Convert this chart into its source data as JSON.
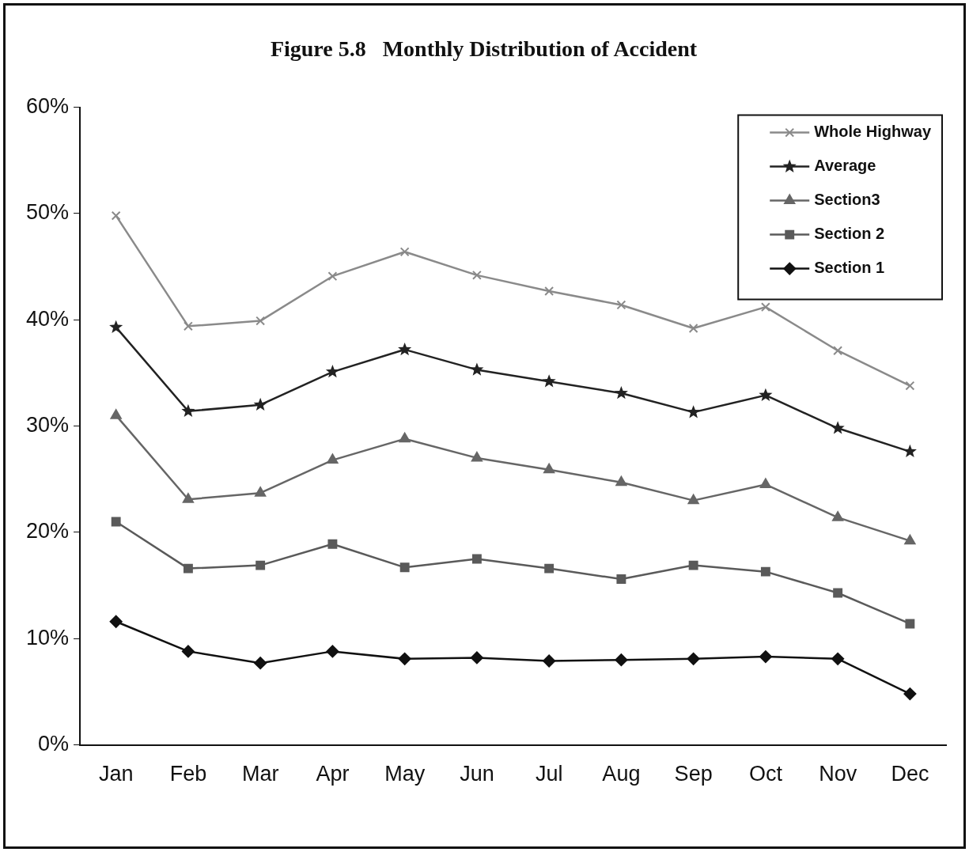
{
  "chart_data": {
    "type": "line",
    "title": "Figure 5.8   Monthly Distribution of Accident",
    "categories": [
      "Jan",
      "Feb",
      "Mar",
      "Apr",
      "May",
      "Jun",
      "Jul",
      "Aug",
      "Sep",
      "Oct",
      "Nov",
      "Dec"
    ],
    "series": [
      {
        "name": "Whole Highway",
        "color": "#8a8a8a",
        "marker": "cross",
        "values": [
          49.8,
          39.4,
          39.9,
          44.1,
          46.4,
          44.2,
          42.7,
          41.4,
          39.2,
          41.2,
          37.1,
          33.8
        ]
      },
      {
        "name": "Average",
        "color": "#222222",
        "marker": "star",
        "values": [
          39.3,
          31.4,
          32.0,
          35.1,
          37.2,
          35.3,
          34.2,
          33.1,
          31.3,
          32.9,
          29.8,
          27.6
        ]
      },
      {
        "name": "Section3",
        "color": "#666666",
        "marker": "triangle",
        "values": [
          31.0,
          23.1,
          23.7,
          26.8,
          28.8,
          27.0,
          25.9,
          24.7,
          23.0,
          24.5,
          21.4,
          19.2
        ]
      },
      {
        "name": "Section 2",
        "color": "#5a5a5a",
        "marker": "square",
        "values": [
          21.0,
          16.6,
          16.9,
          18.9,
          16.7,
          17.5,
          16.6,
          15.6,
          16.9,
          16.3,
          14.3,
          11.4
        ]
      },
      {
        "name": "Section 1",
        "color": "#111111",
        "marker": "diamond",
        "values": [
          11.6,
          8.8,
          7.7,
          8.8,
          8.1,
          8.2,
          7.9,
          8.0,
          8.1,
          8.3,
          8.1,
          4.8
        ]
      }
    ],
    "ylim": [
      0,
      60
    ],
    "yticks": [
      {
        "value": 0,
        "label": "0%"
      },
      {
        "value": 10,
        "label": "10%"
      },
      {
        "value": 20,
        "label": "20%"
      },
      {
        "value": 30,
        "label": "30%"
      },
      {
        "value": 40,
        "label": "40%"
      },
      {
        "value": 50,
        "label": "50%"
      },
      {
        "value": 60,
        "label": "60%"
      }
    ],
    "grid": false,
    "legend": "top right",
    "line_style": "solid"
  }
}
